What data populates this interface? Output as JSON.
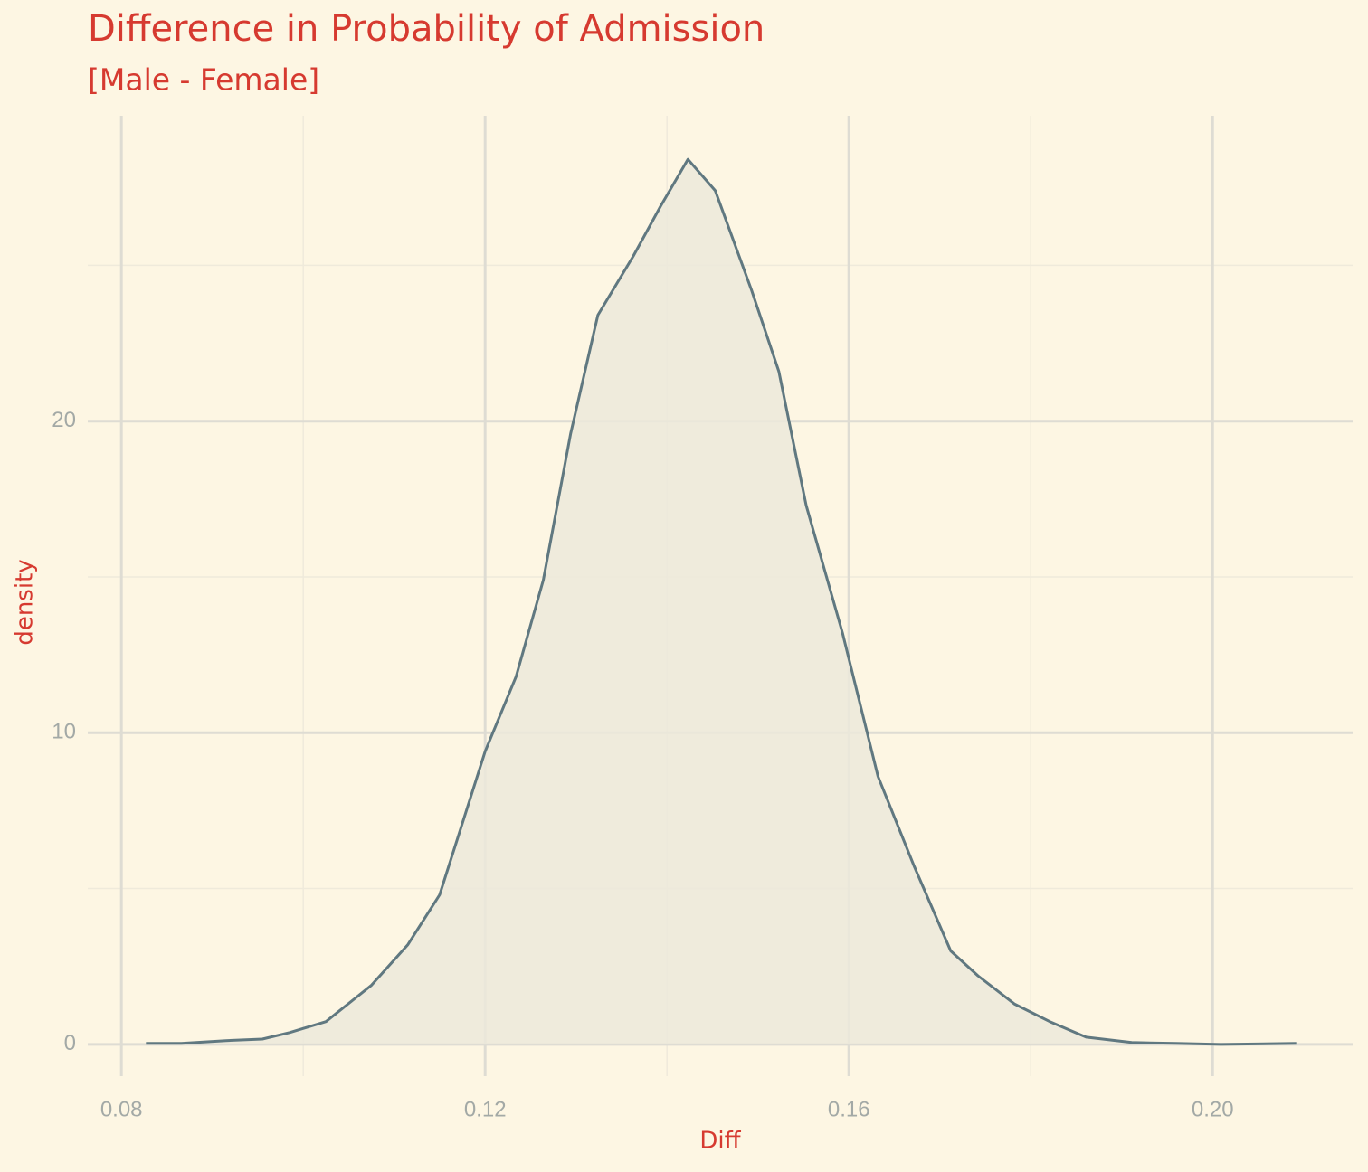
{
  "chart_data": {
    "type": "density",
    "title": "Difference in Probability of Admission",
    "subtitle": "[Male - Female]",
    "x_label": "Diff",
    "y_label": "density",
    "x": [
      0.0827,
      0.0866,
      0.0915,
      0.0955,
      0.0985,
      0.1025,
      0.1075,
      0.1115,
      0.115,
      0.1175,
      0.12,
      0.1234,
      0.1264,
      0.1294,
      0.1324,
      0.1363,
      0.1393,
      0.1423,
      0.1453,
      0.1493,
      0.1523,
      0.1553,
      0.1593,
      0.1632,
      0.1672,
      0.1712,
      0.1742,
      0.1782,
      0.1821,
      0.1861,
      0.1911,
      0.196,
      0.2009,
      0.2092
    ],
    "values": [
      0.03,
      0.03,
      0.12,
      0.17,
      0.38,
      0.73,
      1.9,
      3.2,
      4.8,
      7.1,
      9.4,
      11.8,
      14.9,
      19.6,
      23.4,
      25.3,
      26.9,
      28.4,
      27.4,
      24.2,
      21.6,
      17.3,
      13.2,
      8.6,
      5.7,
      3.0,
      2.2,
      1.3,
      0.73,
      0.23,
      0.06,
      0.03,
      0,
      0.03
    ],
    "color": "#607880",
    "fill": "#ece9da",
    "xlim": [
      0.0763,
      0.2154
    ],
    "ylim": [
      -1.02,
      29.8
    ],
    "xticks": [
      0.08,
      0.12,
      0.16,
      {
        "value": 0.2,
        "label": "0.20"
      }
    ],
    "yticks": [
      0,
      10,
      20
    ],
    "x_minor_grid": [
      0.1,
      0.14,
      0.18
    ],
    "y_minor_grid": [
      5,
      15,
      25
    ],
    "grid": true
  }
}
